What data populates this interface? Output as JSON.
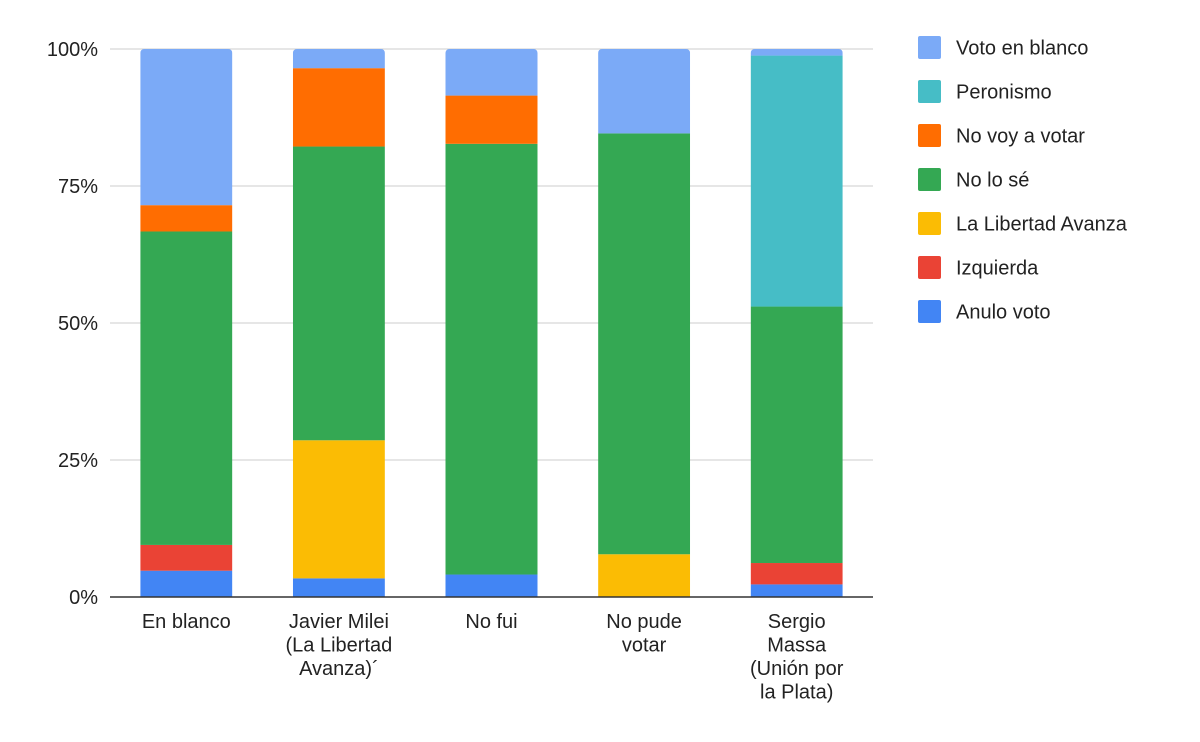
{
  "chart_data": {
    "type": "bar",
    "stacked": true,
    "normalized": true,
    "categories": [
      [
        "En blanco"
      ],
      [
        "Javier Milei",
        "(La Libertad",
        "Avanza)´"
      ],
      [
        "No fui"
      ],
      [
        "No pude",
        "votar"
      ],
      [
        "Sergio",
        "Massa",
        "(Unión por",
        "la Plata)"
      ]
    ],
    "y_ticks": [
      "0%",
      "25%",
      "50%",
      "75%",
      "100%"
    ],
    "ylim": [
      0,
      100
    ],
    "grid": true,
    "legend_position": "right",
    "series": [
      {
        "name": "Anulo voto",
        "color": "#4285F4",
        "values": [
          4.8,
          3.4,
          4.1,
          0,
          2.3
        ]
      },
      {
        "name": "Izquierda",
        "color": "#EA4335",
        "values": [
          4.7,
          0,
          0,
          0,
          3.9
        ]
      },
      {
        "name": "La Libertad Avanza",
        "color": "#FBBC04",
        "values": [
          0,
          25.2,
          0,
          7.8,
          0
        ]
      },
      {
        "name": "No lo sé",
        "color": "#34A853",
        "values": [
          57.2,
          53.6,
          78.6,
          76.8,
          46.8
        ]
      },
      {
        "name": "No voy a votar",
        "color": "#FF6D01",
        "values": [
          4.8,
          14.3,
          8.8,
          0,
          0
        ]
      },
      {
        "name": "Peronismo",
        "color": "#46BDC6",
        "values": [
          0,
          0,
          0,
          0,
          45.8
        ]
      },
      {
        "name": "Voto en blanco",
        "color": "#7BAAF7",
        "values": [
          28.5,
          3.5,
          8.5,
          15.4,
          1.2
        ]
      }
    ],
    "legend_order": [
      "Voto en blanco",
      "Peronismo",
      "No voy a votar",
      "No lo sé",
      "La Libertad Avanza",
      "Izquierda",
      "Anulo voto"
    ]
  }
}
